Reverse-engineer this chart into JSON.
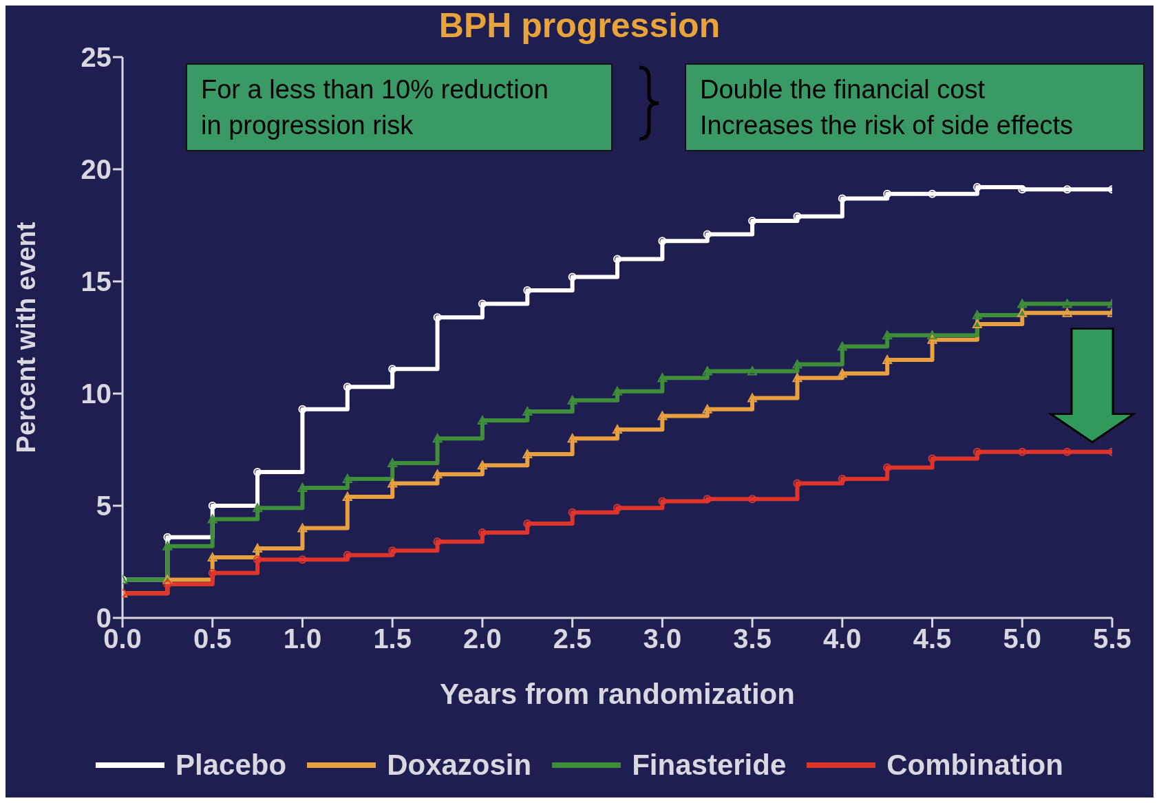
{
  "chart_data": {
    "type": "step",
    "title": "BPH progression",
    "xlabel": "Years from randomization",
    "ylabel": "Percent with event",
    "x": [
      0,
      0.25,
      0.5,
      0.75,
      1,
      1.25,
      1.5,
      1.75,
      2,
      2.25,
      2.5,
      2.75,
      3,
      3.25,
      3.5,
      3.75,
      4,
      4.25,
      4.5,
      4.75,
      5,
      5.25,
      5.5
    ],
    "series": [
      {
        "name": "Placebo",
        "color": "#ffffff",
        "marker": "circle",
        "values": [
          1.7,
          3.6,
          5.0,
          6.5,
          9.3,
          10.3,
          11.1,
          13.4,
          14.0,
          14.6,
          15.2,
          16.0,
          16.8,
          17.1,
          17.7,
          17.9,
          18.7,
          18.9,
          18.9,
          19.2,
          19.1,
          19.1,
          19.1
        ]
      },
      {
        "name": "Doxazosin",
        "color": "#e8a040",
        "marker": "triangle",
        "values": [
          1.1,
          1.7,
          2.7,
          3.1,
          4.0,
          5.4,
          6.0,
          6.4,
          6.8,
          7.3,
          8.0,
          8.4,
          9.0,
          9.3,
          9.8,
          10.7,
          10.9,
          11.5,
          12.4,
          13.1,
          13.6,
          13.6,
          13.6
        ]
      },
      {
        "name": "Finasteride",
        "color": "#3f8f3a",
        "marker": "triangle",
        "values": [
          1.7,
          3.2,
          4.4,
          4.9,
          5.8,
          6.2,
          6.9,
          8.0,
          8.8,
          9.2,
          9.7,
          10.1,
          10.7,
          11.0,
          11.0,
          11.3,
          12.1,
          12.6,
          12.6,
          13.5,
          14.0,
          14.0,
          14.0
        ]
      },
      {
        "name": "Combination",
        "color": "#e0352b",
        "marker": "circle",
        "values": [
          1.1,
          1.5,
          2.0,
          2.6,
          2.6,
          2.8,
          3.0,
          3.4,
          3.8,
          4.2,
          4.7,
          4.9,
          5.2,
          5.3,
          5.3,
          6.0,
          6.2,
          6.7,
          7.1,
          7.4,
          7.4,
          7.4,
          7.4
        ]
      }
    ],
    "xlim": [
      0,
      5.5
    ],
    "xticks": [
      {
        "value": 0,
        "label": "0.0"
      },
      {
        "value": 0.5,
        "label": "0.5"
      },
      {
        "value": 1,
        "label": "1.0"
      },
      {
        "value": 1.5,
        "label": "1.5"
      },
      {
        "value": 2,
        "label": "2.0"
      },
      {
        "value": 2.5,
        "label": "2.5"
      },
      {
        "value": 3,
        "label": "3.0"
      },
      {
        "value": 3.5,
        "label": "3.5"
      },
      {
        "value": 4,
        "label": "4.0"
      },
      {
        "value": 4.5,
        "label": "4.5"
      },
      {
        "value": 5,
        "label": "5.0"
      },
      {
        "value": 5.5,
        "label": "5.5"
      }
    ],
    "ylim": [
      0,
      25
    ],
    "yticks": [
      0,
      5,
      10,
      15,
      20,
      25
    ],
    "legend": "bottom",
    "annotations": [
      "For a less than 10% reduction\nin progression risk",
      "Double the financial cost\nIncreases the risk of side effects"
    ]
  }
}
